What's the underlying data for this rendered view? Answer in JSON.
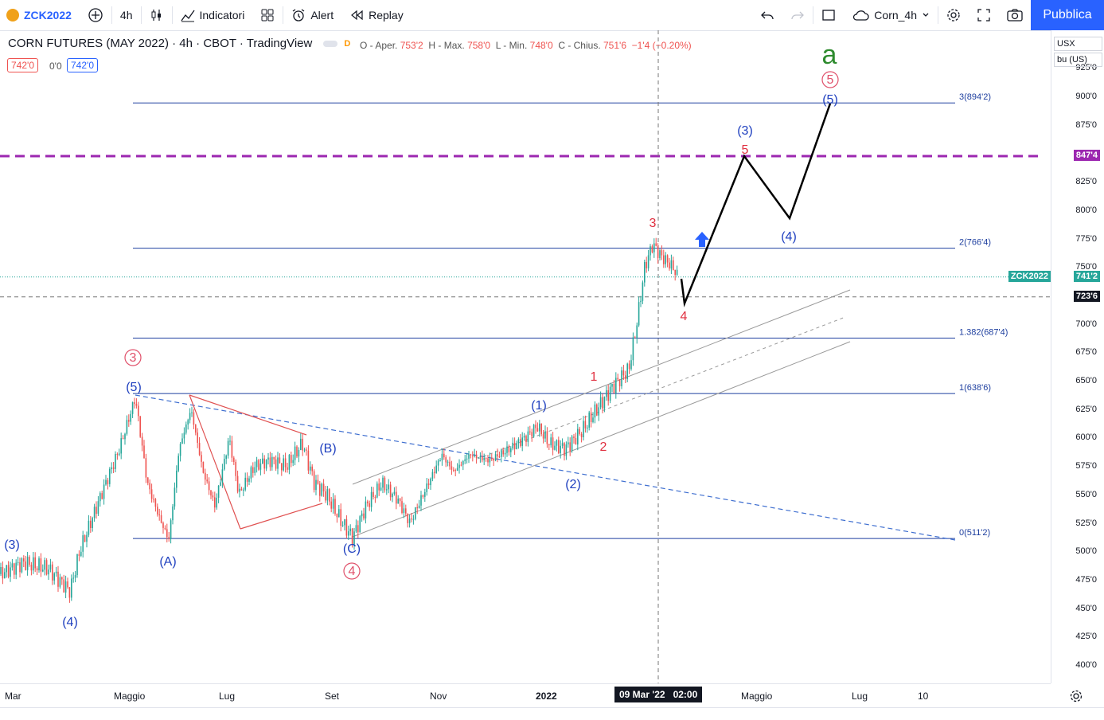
{
  "toolbar": {
    "symbol": "ZCK2022",
    "interval": "4h",
    "indicators": "Indicatori",
    "alert": "Alert",
    "replay": "Replay",
    "layout_name": "Corn_4h",
    "publish": "Pubblica"
  },
  "legend": {
    "title": "CORN FUTURES (MAY 2022) · 4h · CBOT · TradingView",
    "badge": "D",
    "o_label": "O - Aper.",
    "o": "753'2",
    "h_label": "H - Max.",
    "h": "758'0",
    "l_label": "L - Min.",
    "l": "748'0",
    "c_label": "C - Chius.",
    "c": "751'6",
    "change": "−1'4 (−0.20%)",
    "bid": "742'0",
    "spread": "0'0",
    "ask": "742'0"
  },
  "price_scale": {
    "currency": "USX",
    "unit": "bu (US)",
    "ticks": [
      {
        "v": 925,
        "label": "925'0"
      },
      {
        "v": 900,
        "label": "900'0"
      },
      {
        "v": 875,
        "label": "875'0"
      },
      {
        "v": 825,
        "label": "825'0"
      },
      {
        "v": 800,
        "label": "800'0"
      },
      {
        "v": 775,
        "label": "775'0"
      },
      {
        "v": 750,
        "label": "750'0"
      },
      {
        "v": 700,
        "label": "700'0"
      },
      {
        "v": 675,
        "label": "675'0"
      },
      {
        "v": 650,
        "label": "650'0"
      },
      {
        "v": 625,
        "label": "625'0"
      },
      {
        "v": 600,
        "label": "600'0"
      },
      {
        "v": 575,
        "label": "575'0"
      },
      {
        "v": 550,
        "label": "550'0"
      },
      {
        "v": 525,
        "label": "525'0"
      },
      {
        "v": 500,
        "label": "500'0"
      },
      {
        "v": 475,
        "label": "475'0"
      },
      {
        "v": 450,
        "label": "450'0"
      },
      {
        "v": 425,
        "label": "425'0"
      },
      {
        "v": 400,
        "label": "400'0"
      }
    ],
    "resistance_label": "847'4",
    "last_symbol": "ZCK2022",
    "last_price": "741'2",
    "crosshair_price": "723'6"
  },
  "time_scale": {
    "labels": [
      "Mar",
      "Maggio",
      "Lug",
      "Set",
      "Nov",
      "2022",
      "Maggio",
      "Lug",
      "10"
    ],
    "crosshair_date": "09 Mar '22",
    "crosshair_time": "02:00"
  },
  "fib_levels": [
    {
      "level": "3(894'2)",
      "price": 894.25
    },
    {
      "level": "2(766'4)",
      "price": 766.5
    },
    {
      "level": "1.382(687'4)",
      "price": 687.5
    },
    {
      "level": "1(638'6)",
      "price": 638.75
    },
    {
      "level": "0(511'2)",
      "price": 511.25
    }
  ],
  "wave_labels": [
    {
      "text": "(3)",
      "color": "#1e3fbf"
    },
    {
      "text": "(4)",
      "color": "#1e3fbf"
    },
    {
      "text": "(5)",
      "color": "#1e3fbf"
    },
    {
      "text": "3",
      "color": "#e0506a"
    },
    {
      "text": "(A)",
      "color": "#1e3fbf"
    },
    {
      "text": "(B)",
      "color": "#1e3fbf"
    },
    {
      "text": "(C)",
      "color": "#1e3fbf"
    },
    {
      "text": "4",
      "color": "#e0506a"
    },
    {
      "text": "(1)",
      "color": "#1e3fbf"
    },
    {
      "text": "(2)",
      "color": "#1e3fbf"
    },
    {
      "text": "1",
      "color": "#e03040"
    },
    {
      "text": "2",
      "color": "#e03040"
    },
    {
      "text": "3",
      "color": "#e03040"
    },
    {
      "text": "4",
      "color": "#e03040"
    },
    {
      "text": "(3)",
      "color": "#1e3fbf"
    },
    {
      "text": "5",
      "color": "#e03040"
    },
    {
      "text": "(4)",
      "color": "#1e3fbf"
    },
    {
      "text": "5",
      "color": "#e0506a"
    },
    {
      "text": "(5)",
      "color": "#1e3fbf"
    },
    {
      "text": "a",
      "color": "#2e8b2e"
    }
  ],
  "colors": {
    "accent": "#2962ff",
    "resistance": "#9c27b0",
    "fib": "#1e3f9f",
    "last_price_bg": "#26a69a",
    "up": "#26a69a",
    "down": "#ef5350"
  }
}
